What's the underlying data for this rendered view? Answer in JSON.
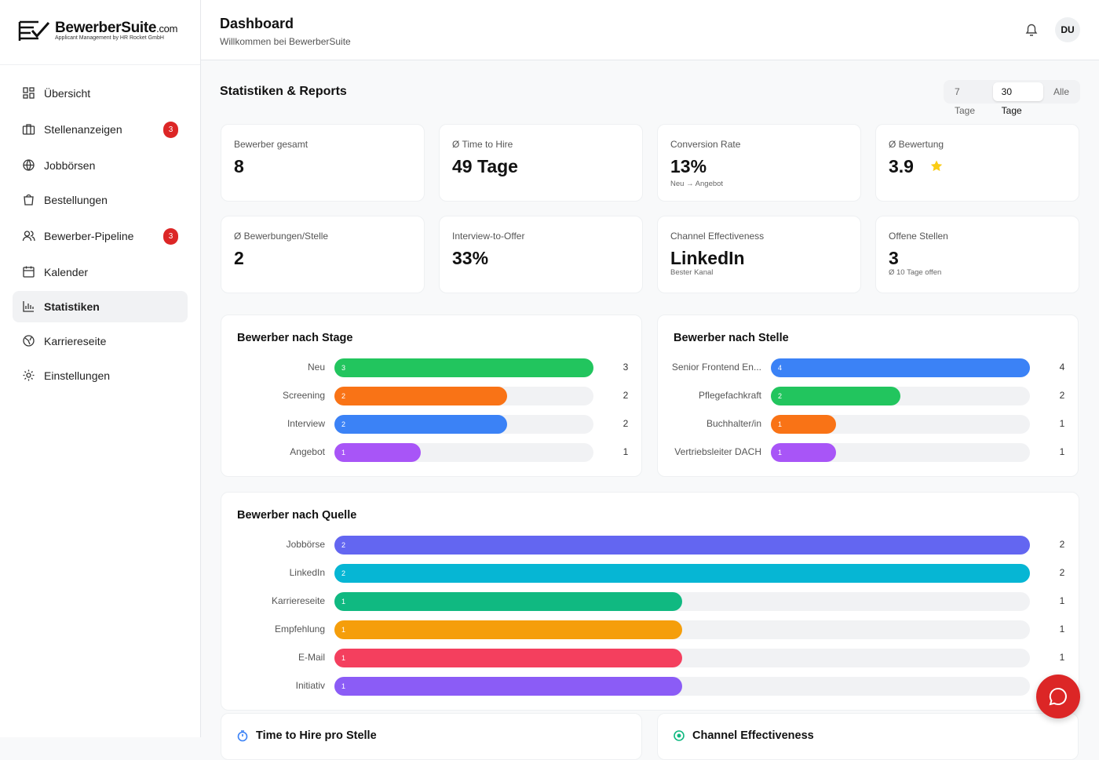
{
  "sidebar": {
    "logo": {
      "name": "BewerberSuite",
      "suffix": ".com",
      "tagline": "Applicant Management by HR Rocket GmbH"
    },
    "nav": [
      {
        "label": "Übersicht"
      },
      {
        "label": "Stellenanzeigen",
        "badge": 3
      },
      {
        "label": "Jobbörsen"
      },
      {
        "label": "Bestellungen"
      },
      {
        "label": "Bewerber-Pipeline",
        "badge": 3
      },
      {
        "label": "Kalender"
      },
      {
        "label": "Statistiken",
        "active": true
      },
      {
        "label": "Karriereseite"
      },
      {
        "label": "Einstellungen"
      }
    ]
  },
  "header": {
    "title": "Dashboard",
    "subtitle": "Willkommen bei BewerberSuite",
    "avatar": "DU"
  },
  "stats": {
    "title": "Statistiken & Reports",
    "ranges": [
      {
        "label": "7 Tage"
      },
      {
        "label": "30 Tage",
        "active": true
      },
      {
        "label": "Alle"
      }
    ]
  },
  "kpis": [
    {
      "label": "Bewerber gesamt",
      "value": 8
    },
    {
      "label": "Ø Time to Hire",
      "value": "49 Tage"
    },
    {
      "label": "Conversion Rate",
      "value": "13%",
      "note": "Neu → Angebot"
    },
    {
      "label": "Ø Bewertung",
      "value": 3.9,
      "star": true
    },
    {
      "label": "Ø Bewerbungen/Stelle",
      "value": 2
    },
    {
      "label": "Interview-to-Offer",
      "value": "33%"
    },
    {
      "label": "Channel Effectiveness",
      "value": "LinkedIn",
      "note": "Bester Kanal"
    },
    {
      "label": "Offene Stellen",
      "value": 3,
      "note": "Ø 10 Tage offen"
    }
  ],
  "panels": [
    {
      "title": "Bewerber nach Stage",
      "items": [
        {
          "label": "Neu",
          "value": 3,
          "color": "#22c55e"
        },
        {
          "label": "Screening",
          "value": 2,
          "color": "#f97316"
        },
        {
          "label": "Interview",
          "value": 2,
          "color": "#3b82f6"
        },
        {
          "label": "Angebot",
          "value": 1,
          "color": "#a855f7"
        }
      ]
    },
    {
      "title": "Bewerber nach Stelle",
      "items": [
        {
          "label": "Senior Frontend En...",
          "value": 4,
          "color": "#3b82f6"
        },
        {
          "label": "Pflegefachkraft",
          "value": 2,
          "color": "#22c55e"
        },
        {
          "label": "Buchhalter/in",
          "value": 1,
          "color": "#f97316"
        },
        {
          "label": "Vertriebsleiter DACH",
          "value": 1,
          "color": "#a855f7"
        }
      ]
    },
    {
      "title": "Bewerber nach Quelle",
      "items": [
        {
          "label": "Jobbörse",
          "value": 2,
          "color": "#6366f1"
        },
        {
          "label": "LinkedIn",
          "value": 2,
          "color": "#06b6d4"
        },
        {
          "label": "Karriereseite",
          "value": 1,
          "color": "#10b981"
        },
        {
          "label": "Empfehlung",
          "value": 1,
          "color": "#f59e0b"
        },
        {
          "label": "E-Mail",
          "value": 1,
          "color": "#f43f5e"
        },
        {
          "label": "Initiativ",
          "value": 1,
          "color": "#8b5cf6"
        }
      ]
    }
  ],
  "bottom": [
    {
      "title": "Time to Hire pro Stelle"
    },
    {
      "title": "Channel Effectiveness"
    }
  ]
}
